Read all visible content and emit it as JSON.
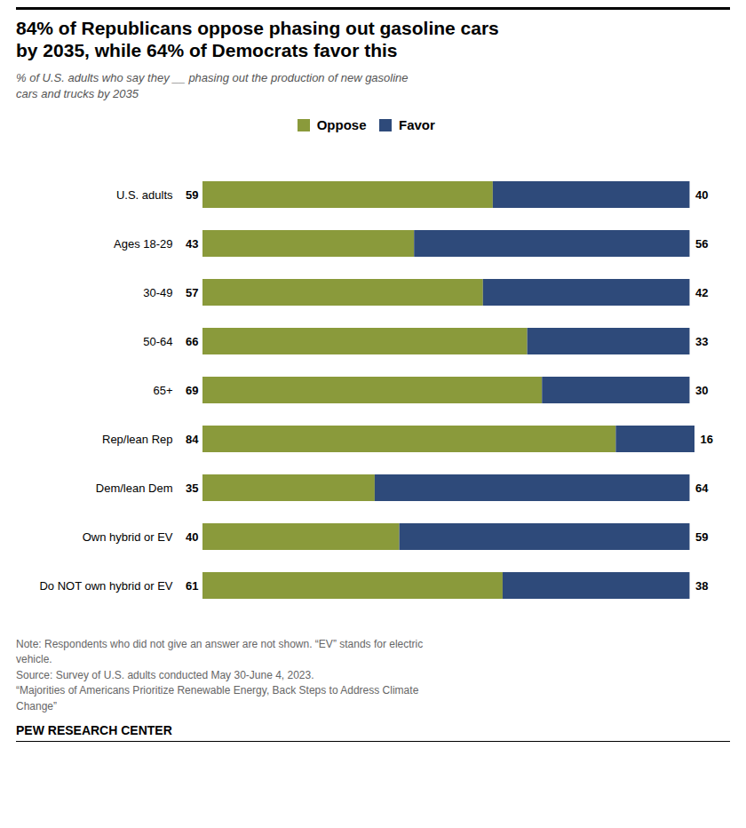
{
  "chart_data": {
    "type": "bar",
    "orientation": "horizontal",
    "stacked": true,
    "title": "84% of Republicans oppose phasing out gasoline cars\nby 2035, while 64% of Democrats favor this",
    "subtitle": "% of U.S. adults who say they __ phasing out the production of new gasoline\ncars and trucks by 2035",
    "annotations": [
      "Note: Respondents who did not give an answer are not shown. “EV” stands for electric\nvehicle.\nSource: Survey of U.S. adults conducted May 30-June 4, 2023.\n“Majorities of Americans Prioritize Renewable Energy, Back Steps to Address Climate\nChange”",
      "PEW RESEARCH CENTER"
    ],
    "categories": [
      "U.S. adults",
      "Ages 18-29",
      "30-49",
      "50-64",
      "65+",
      "Rep/lean Rep",
      "Dem/lean Dem",
      "Own hybrid or EV",
      "Do NOT own hybrid or EV"
    ],
    "series": [
      {
        "name": "Oppose",
        "color": "#8a9a3b",
        "values": [
          59,
          43,
          57,
          66,
          69,
          84,
          35,
          40,
          61
        ]
      },
      {
        "name": "Favor",
        "color": "#2e4a7a",
        "values": [
          40,
          56,
          42,
          33,
          30,
          16,
          64,
          59,
          38
        ]
      }
    ],
    "data_labels": true,
    "legend": "top",
    "tick_labels": "y",
    "grid": false
  }
}
